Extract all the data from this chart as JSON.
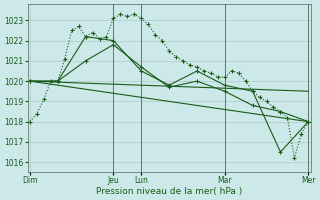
{
  "background_color": "#cce8e8",
  "plot_bg_color": "#cce8e8",
  "grid_color": "#aacccc",
  "line_color": "#1a5c1a",
  "xlabel": "Pression niveau de la mer( hPa )",
  "ylim": [
    1015.5,
    1023.8
  ],
  "yticks": [
    1016,
    1017,
    1018,
    1019,
    1020,
    1021,
    1022,
    1023
  ],
  "xtick_pos": [
    0,
    72,
    96,
    168,
    240
  ],
  "xtick_labels": [
    "Dim",
    "Jeu",
    "Lun",
    "Mar",
    "Mer"
  ],
  "vlines": [
    72,
    96,
    168,
    240
  ],
  "xlim": [
    -2,
    242
  ],
  "line1_dotted": {
    "x": [
      0,
      6,
      12,
      18,
      24,
      30,
      36,
      42,
      48,
      54,
      60,
      66,
      72,
      78,
      84,
      90,
      96,
      102,
      108,
      114,
      120,
      126,
      132,
      138,
      144,
      150,
      156,
      162,
      168,
      174,
      180,
      186,
      192,
      198,
      204,
      210,
      216,
      222,
      228,
      234,
      240
    ],
    "y": [
      1018.0,
      1018.4,
      1019.1,
      1020.0,
      1020.0,
      1021.1,
      1022.5,
      1022.7,
      1022.2,
      1022.4,
      1022.1,
      1022.2,
      1023.1,
      1023.3,
      1023.2,
      1023.3,
      1023.1,
      1022.8,
      1022.3,
      1022.0,
      1021.5,
      1021.2,
      1021.0,
      1020.8,
      1020.7,
      1020.5,
      1020.4,
      1020.2,
      1020.2,
      1020.5,
      1020.4,
      1020.0,
      1019.5,
      1019.2,
      1019.0,
      1018.7,
      1018.5,
      1018.2,
      1016.2,
      1017.4,
      1018.0
    ]
  },
  "line2_solid_markers": {
    "x": [
      0,
      24,
      48,
      72,
      96,
      120,
      144,
      168,
      192,
      216,
      240
    ],
    "y": [
      1020.0,
      1020.0,
      1022.2,
      1022.0,
      1020.5,
      1019.8,
      1020.5,
      1019.8,
      1019.5,
      1016.5,
      1018.0
    ]
  },
  "line3_solid_nomarker": {
    "x": [
      0,
      240
    ],
    "y": [
      1020.0,
      1018.0
    ]
  },
  "line4_solid_nomarker2": {
    "x": [
      0,
      240
    ],
    "y": [
      1020.0,
      1019.5
    ]
  },
  "line5_solid_markers2": {
    "x": [
      0,
      24,
      48,
      72,
      96,
      120,
      144,
      168,
      192,
      216,
      240
    ],
    "y": [
      1020.0,
      1020.0,
      1021.0,
      1021.8,
      1020.7,
      1019.7,
      1020.0,
      1019.5,
      1018.8,
      1018.5,
      1018.0
    ]
  }
}
